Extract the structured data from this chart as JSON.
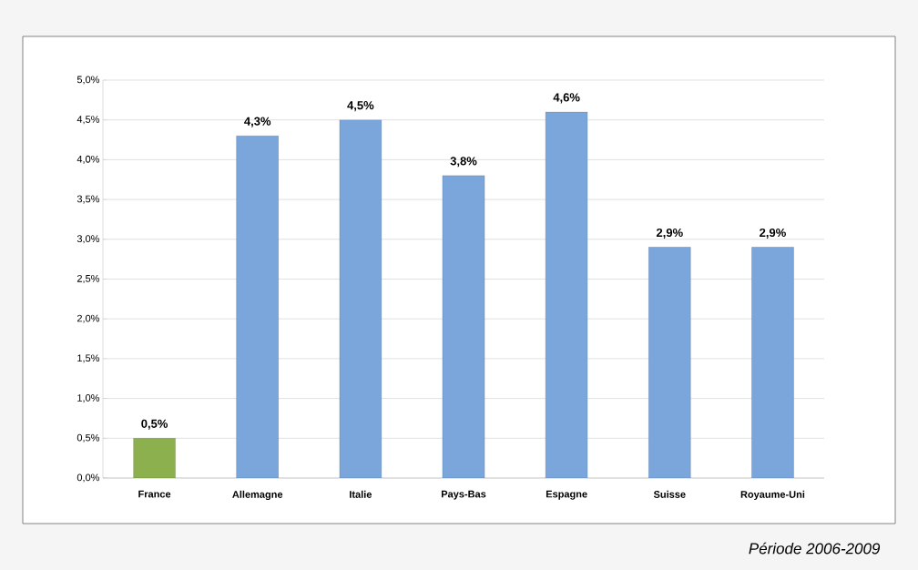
{
  "chart_data": {
    "type": "bar",
    "categories": [
      "France",
      "Allemagne",
      "Italie",
      "Pays-Bas",
      "Espagne",
      "Suisse",
      "Royaume-Uni"
    ],
    "values": [
      0.5,
      4.3,
      4.5,
      3.8,
      4.6,
      2.9,
      2.9
    ],
    "colors": [
      "#8db04e",
      "#7aa6dc",
      "#7aa6dc",
      "#7aa6dc",
      "#7aa6dc",
      "#7aa6dc",
      "#7aa6dc"
    ],
    "value_labels": [
      "0,5%",
      "4,3%",
      "4,5%",
      "3,8%",
      "4,6%",
      "2,9%",
      "2,9%"
    ],
    "ylim": [
      0,
      5
    ],
    "yticks": [
      {
        "value": 0,
        "label": "0,0%"
      },
      {
        "value": 0.5,
        "label": "0,5%"
      },
      {
        "value": 1,
        "label": "1,0%"
      },
      {
        "value": 1.5,
        "label": "1,5%"
      },
      {
        "value": 2,
        "label": "2,0%"
      },
      {
        "value": 2.5,
        "label": "2,5%"
      },
      {
        "value": 3,
        "label": "3,0%"
      },
      {
        "value": 3.5,
        "label": "3,5%"
      },
      {
        "value": 4,
        "label": "4,0%"
      },
      {
        "value": 4.5,
        "label": "4,5%"
      },
      {
        "value": 5,
        "label": "5,0%"
      }
    ],
    "grid": "y",
    "annotations": [
      "*Période 2006-2009*"
    ]
  }
}
